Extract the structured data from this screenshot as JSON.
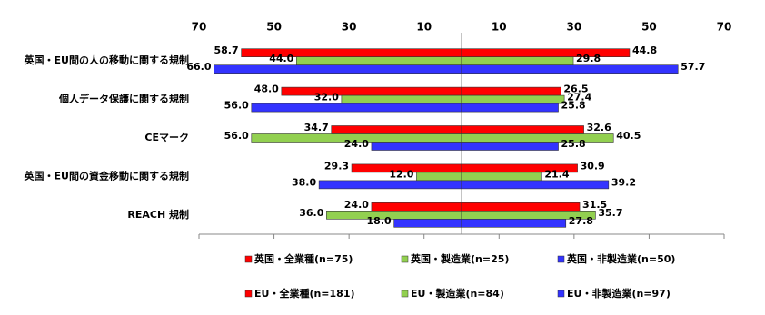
{
  "chart_data": {
    "type": "butterfly-bar",
    "categories": [
      "英国・EU間の人の移動に関する規制",
      "個人データ保護に関する規制",
      "CEマーク",
      "英国・EU間の資金移動に関する規制",
      "REACH 規制"
    ],
    "xlim": [
      -70,
      70
    ],
    "xticks": [
      {
        "value": -70,
        "label": "70"
      },
      {
        "value": -50,
        "label": "50"
      },
      {
        "value": -30,
        "label": "30"
      },
      {
        "value": -10,
        "label": "10"
      },
      10,
      30,
      50,
      70
    ],
    "series": [
      {
        "name": "英国・全業種(n=75)",
        "color": "#ff0000",
        "values": [
          58.7,
          48.0,
          34.7,
          29.3,
          24.0
        ],
        "value_labels": [
          "58.7",
          "48.0",
          "34.7",
          "29.3",
          "24.0"
        ]
      },
      {
        "name": "英国・製造業(n=25)",
        "color": "#92d050",
        "values": [
          44.0,
          32.0,
          56.0,
          12.0,
          36.0
        ],
        "value_labels": [
          "44.0",
          "32.0",
          "56.0",
          "12.0",
          "36.0"
        ]
      },
      {
        "name": "英国・非製造業(n=50)",
        "color": "#3333ff",
        "values": [
          66.0,
          56.0,
          24.0,
          38.0,
          18.0
        ],
        "value_labels": [
          "66.0",
          "56.0",
          "24.0",
          "38.0",
          "18.0"
        ]
      },
      {
        "name": "EU・全業種(n=181)",
        "color": "#ff0000",
        "values": [
          44.8,
          26.5,
          32.6,
          30.9,
          31.5
        ],
        "value_labels": [
          "44.8",
          "26.5",
          "32.6",
          "30.9",
          "31.5"
        ]
      },
      {
        "name": "EU・製造業(n=84)",
        "color": "#92d050",
        "values": [
          29.8,
          27.4,
          40.5,
          21.4,
          35.7
        ],
        "value_labels": [
          "29.8",
          "27.4",
          "40.5",
          "21.4",
          "35.7"
        ]
      },
      {
        "name": "EU・非製造業(n=97)",
        "color": "#3333ff",
        "values": [
          57.7,
          25.8,
          25.8,
          39.2,
          27.8
        ],
        "value_labels": [
          "57.7",
          "25.8",
          "25.8",
          "39.2",
          "27.8"
        ]
      }
    ]
  }
}
